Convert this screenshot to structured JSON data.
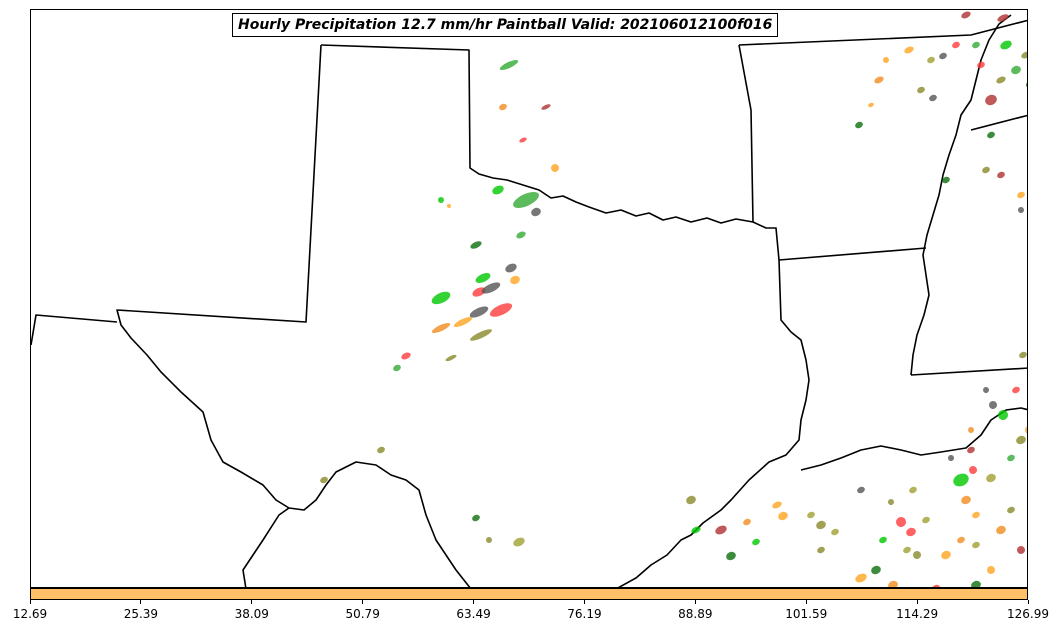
{
  "title": "Hourly Precipitation 12.7 mm/hr Paintball Valid: 202106012100f016",
  "colorbar": {
    "color": "#ffc068",
    "ticks": [
      "12.69",
      "25.39",
      "38.09",
      "50.79",
      "63.49",
      "76.19",
      "88.89",
      "101.59",
      "114.29",
      "126.99"
    ]
  },
  "member_colors": [
    "#33aa33",
    "#0d6e0d",
    "#f08c1e",
    "#ff3b3b",
    "#555555",
    "#8a8a2a",
    "#b03030",
    "#00c800",
    "#ffa520",
    "#a0a030"
  ]
}
